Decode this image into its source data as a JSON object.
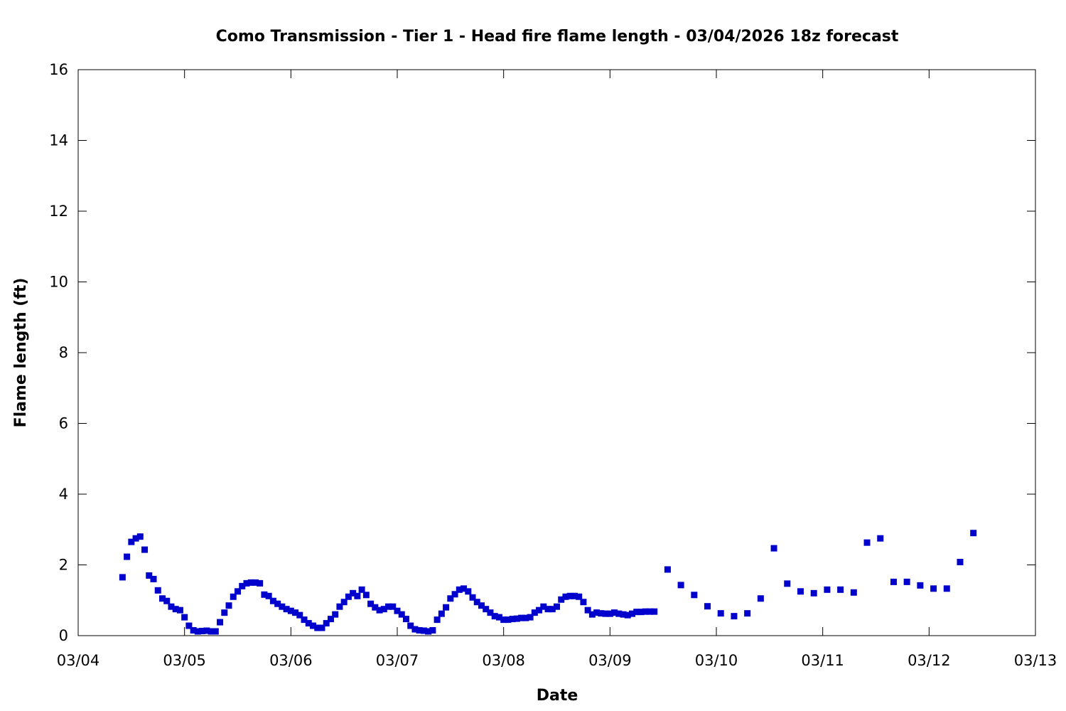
{
  "chart_data": {
    "type": "scatter",
    "title": "Como Transmission - Tier 1 - Head fire flame length - 03/04/2026 18z forecast",
    "xlabel": "Date",
    "ylabel": "Flame length (ft)",
    "xlim": [
      "03/04",
      "03/13"
    ],
    "ylim": [
      0,
      16
    ],
    "x_ticks": [
      "03/04",
      "03/05",
      "03/06",
      "03/07",
      "03/08",
      "03/09",
      "03/10",
      "03/11",
      "03/12",
      "03/13"
    ],
    "y_ticks": [
      0,
      2,
      4,
      6,
      8,
      10,
      12,
      14,
      16
    ],
    "grid": false,
    "legend": "none",
    "marker_color": "#0000cc",
    "marker": "square",
    "series": [
      {
        "x": [
          "03/04 10:00",
          "03/04 11:00",
          "03/04 12:00",
          "03/04 13:00",
          "03/04 14:00",
          "03/04 15:00",
          "03/04 16:00",
          "03/04 17:00",
          "03/04 18:00",
          "03/04 19:00",
          "03/04 20:00",
          "03/04 21:00",
          "03/04 22:00",
          "03/04 23:00",
          "03/05 00:00",
          "03/05 01:00",
          "03/05 02:00",
          "03/05 03:00",
          "03/05 04:00",
          "03/05 05:00",
          "03/05 06:00",
          "03/05 07:00",
          "03/05 08:00",
          "03/05 09:00",
          "03/05 10:00",
          "03/05 11:00",
          "03/05 12:00",
          "03/05 13:00",
          "03/05 14:00",
          "03/05 15:00",
          "03/05 16:00",
          "03/05 17:00",
          "03/05 18:00",
          "03/05 19:00",
          "03/05 20:00",
          "03/05 21:00",
          "03/05 22:00",
          "03/05 23:00",
          "03/06 00:00",
          "03/06 01:00",
          "03/06 02:00",
          "03/06 03:00",
          "03/06 04:00",
          "03/06 05:00",
          "03/06 06:00",
          "03/06 07:00",
          "03/06 08:00",
          "03/06 09:00",
          "03/06 10:00",
          "03/06 11:00",
          "03/06 12:00",
          "03/06 13:00",
          "03/06 14:00",
          "03/06 15:00",
          "03/06 16:00",
          "03/06 17:00",
          "03/06 18:00",
          "03/06 19:00",
          "03/06 20:00",
          "03/06 21:00",
          "03/06 22:00",
          "03/06 23:00",
          "03/07 00:00",
          "03/07 01:00",
          "03/07 02:00",
          "03/07 03:00",
          "03/07 04:00",
          "03/07 05:00",
          "03/07 06:00",
          "03/07 07:00",
          "03/07 08:00",
          "03/07 09:00",
          "03/07 10:00",
          "03/07 11:00",
          "03/07 12:00",
          "03/07 13:00",
          "03/07 14:00",
          "03/07 15:00",
          "03/07 16:00",
          "03/07 17:00",
          "03/07 18:00",
          "03/07 19:00",
          "03/07 20:00",
          "03/07 21:00",
          "03/07 22:00",
          "03/07 23:00",
          "03/08 00:00",
          "03/08 01:00",
          "03/08 02:00",
          "03/08 03:00",
          "03/08 04:00",
          "03/08 05:00",
          "03/08 06:00",
          "03/08 07:00",
          "03/08 08:00",
          "03/08 09:00",
          "03/08 10:00",
          "03/08 11:00",
          "03/08 12:00",
          "03/08 13:00",
          "03/08 14:00",
          "03/08 15:00",
          "03/08 16:00",
          "03/08 17:00",
          "03/08 18:00",
          "03/08 19:00",
          "03/08 20:00",
          "03/08 21:00",
          "03/08 22:00",
          "03/08 23:00",
          "03/09 00:00",
          "03/09 01:00",
          "03/09 02:00",
          "03/09 03:00",
          "03/09 04:00",
          "03/09 05:00",
          "03/09 06:00",
          "03/09 07:00",
          "03/09 08:00",
          "03/09 09:00",
          "03/09 10:00",
          "03/09 13:00",
          "03/09 16:00",
          "03/09 19:00",
          "03/09 22:00",
          "03/10 01:00",
          "03/10 04:00",
          "03/10 07:00",
          "03/10 10:00",
          "03/10 13:00",
          "03/10 16:00",
          "03/10 19:00",
          "03/10 22:00",
          "03/11 01:00",
          "03/11 04:00",
          "03/11 07:00",
          "03/11 10:00",
          "03/11 13:00",
          "03/11 16:00",
          "03/11 19:00",
          "03/11 22:00",
          "03/12 01:00",
          "03/12 04:00",
          "03/12 07:00",
          "03/12 10:00"
        ],
        "y": [
          1.65,
          2.23,
          2.65,
          2.75,
          2.8,
          2.43,
          1.7,
          1.6,
          1.28,
          1.05,
          0.98,
          0.82,
          0.75,
          0.72,
          0.52,
          0.28,
          0.15,
          0.12,
          0.13,
          0.14,
          0.12,
          0.12,
          0.38,
          0.65,
          0.85,
          1.1,
          1.25,
          1.4,
          1.48,
          1.5,
          1.5,
          1.48,
          1.16,
          1.12,
          0.98,
          0.9,
          0.82,
          0.75,
          0.7,
          0.65,
          0.58,
          0.45,
          0.35,
          0.28,
          0.22,
          0.22,
          0.35,
          0.47,
          0.6,
          0.82,
          0.95,
          1.1,
          1.2,
          1.12,
          1.3,
          1.15,
          0.9,
          0.8,
          0.72,
          0.75,
          0.82,
          0.82,
          0.7,
          0.6,
          0.47,
          0.28,
          0.18,
          0.15,
          0.14,
          0.12,
          0.15,
          0.45,
          0.62,
          0.8,
          1.05,
          1.17,
          1.3,
          1.33,
          1.25,
          1.08,
          0.95,
          0.85,
          0.75,
          0.65,
          0.55,
          0.52,
          0.45,
          0.45,
          0.47,
          0.48,
          0.5,
          0.5,
          0.52,
          0.65,
          0.72,
          0.82,
          0.75,
          0.75,
          0.82,
          1.02,
          1.1,
          1.12,
          1.12,
          1.1,
          0.95,
          0.72,
          0.6,
          0.65,
          0.63,
          0.62,
          0.62,
          0.65,
          0.62,
          0.6,
          0.58,
          0.62,
          0.67,
          0.67,
          0.68,
          0.68,
          0.68,
          1.87,
          1.43,
          1.15,
          0.83,
          0.63,
          0.55,
          0.63,
          1.05,
          2.47,
          1.47,
          1.25,
          1.2,
          1.3,
          1.3,
          1.22,
          2.63,
          2.75,
          1.52,
          1.52,
          1.42,
          1.33,
          1.33,
          2.08,
          2.9
        ]
      }
    ]
  }
}
